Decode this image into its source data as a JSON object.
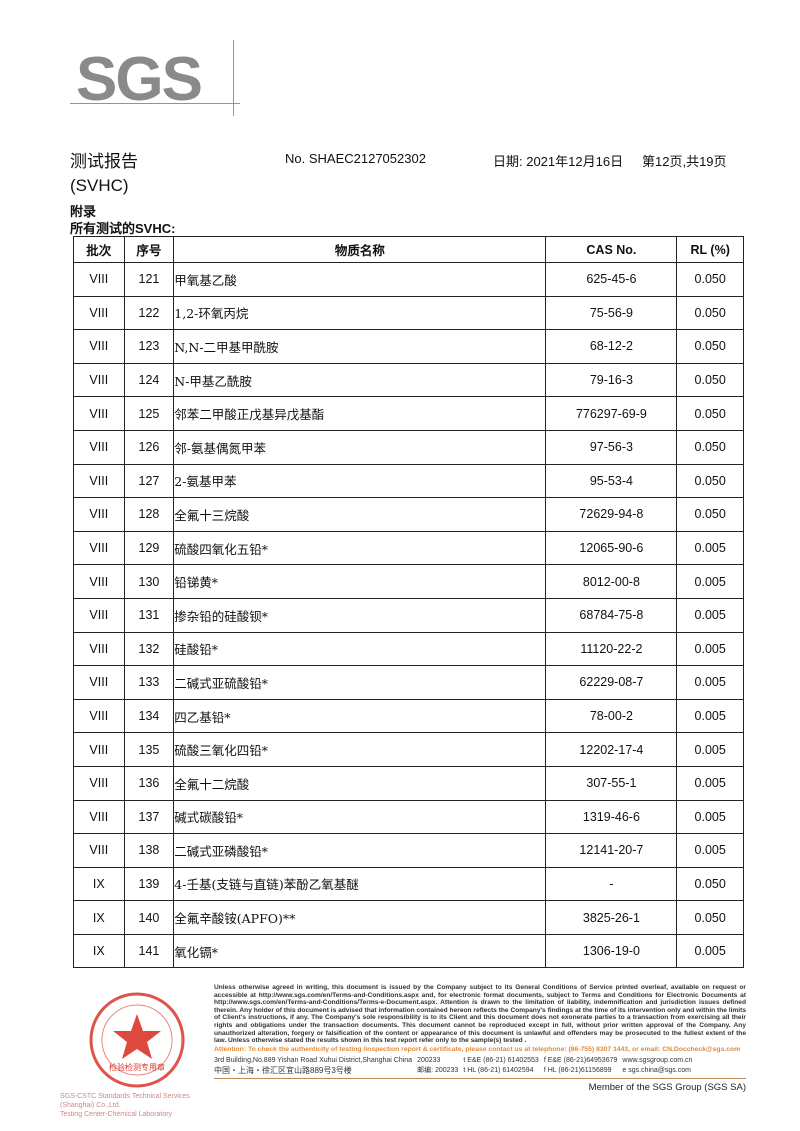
{
  "logo": "SGS",
  "header": {
    "title": "测试报告",
    "report_no": "No. SHAEC2127052302",
    "date": "日期: 2021年12月16日",
    "page": "第12页,共19页",
    "subtitle": "(SVHC)",
    "section": "附录",
    "list_title": "所有测试的SVHC:"
  },
  "table": {
    "columns": [
      "批次",
      "序号",
      "物质名称",
      "CAS No.",
      "RL (%)"
    ],
    "rows": [
      [
        "VIII",
        "121",
        "甲氧基乙酸",
        "625-45-6",
        "0.050"
      ],
      [
        "VIII",
        "122",
        "1,2-环氧丙烷",
        "75-56-9",
        "0.050"
      ],
      [
        "VIII",
        "123",
        "N,N-二甲基甲酰胺",
        "68-12-2",
        "0.050"
      ],
      [
        "VIII",
        "124",
        "N-甲基乙酰胺",
        "79-16-3",
        "0.050"
      ],
      [
        "VIII",
        "125",
        "邻苯二甲酸正戊基异戊基酯",
        "776297-69-9",
        "0.050"
      ],
      [
        "VIII",
        "126",
        "邻-氨基偶氮甲苯",
        "97-56-3",
        "0.050"
      ],
      [
        "VIII",
        "127",
        "2-氨基甲苯",
        "95-53-4",
        "0.050"
      ],
      [
        "VIII",
        "128",
        "全氟十三烷酸",
        "72629-94-8",
        "0.050"
      ],
      [
        "VIII",
        "129",
        "硫酸四氧化五铅*",
        "12065-90-6",
        "0.005"
      ],
      [
        "VIII",
        "130",
        "铅锑黄*",
        "8012-00-8",
        "0.005"
      ],
      [
        "VIII",
        "131",
        "掺杂铅的硅酸钡*",
        "68784-75-8",
        "0.005"
      ],
      [
        "VIII",
        "132",
        "硅酸铅*",
        "11120-22-2",
        "0.005"
      ],
      [
        "VIII",
        "133",
        "二碱式亚硫酸铅*",
        "62229-08-7",
        "0.005"
      ],
      [
        "VIII",
        "134",
        "四乙基铅*",
        "78-00-2",
        "0.005"
      ],
      [
        "VIII",
        "135",
        "硫酸三氧化四铅*",
        "12202-17-4",
        "0.005"
      ],
      [
        "VIII",
        "136",
        "全氟十二烷酸",
        "307-55-1",
        "0.005"
      ],
      [
        "VIII",
        "137",
        "碱式碳酸铅*",
        "1319-46-6",
        "0.005"
      ],
      [
        "VIII",
        "138",
        "二碱式亚磷酸铅*",
        "12141-20-7",
        "0.005"
      ],
      [
        "IX",
        "139",
        "4-壬基(支链与直链)苯酚乙氧基醚",
        "-",
        "0.050"
      ],
      [
        "IX",
        "140",
        "全氟辛酸铵(APFO)**",
        "3825-26-1",
        "0.050"
      ],
      [
        "IX",
        "141",
        "氧化镉*",
        "1306-19-0",
        "0.005"
      ]
    ]
  },
  "footer": {
    "disclaimer": "Unless otherwise agreed in writing, this document is issued by the Company subject to its General Conditions of Service printed overleaf, available on request or accessible at http://www.sgs.com/en/Terms-and-Conditions.aspx and, for electronic format documents, subject to Terms and Conditions for Electronic Documents at http://www.sgs.com/en/Terms-and-Conditions/Terms-e-Document.aspx. Attention is drawn to the limitation of liability, indemnification and jurisdiction issues defined therein. Any holder of this document is advised that information contained hereon reflects the Company's findings at the time of its intervention only and within the limits of Client's instructions, if any. The Company's sole responsibility is to its Client and this document does not exonerate parties to a transaction from exercising all their rights and obligations under the transaction documents. This document cannot be reproduced except in full, without prior written approval of the Company. Any unauthorized alteration, forgery or falsification of the content or appearance of this document is unlawful and offenders may be prosecuted to the fullest extent of the law. Unless otherwise stated the results shown in this test report refer only to the sample(s) tested .",
    "attention": "Attention: To check the authenticity of testing /inspection report & certificate, please contact us at telephone: (86-755) 8307 1443, or email: CN.Doccheck@sgs.com",
    "address_en": "3rd Building,No.889 Yishan Road Xuhui District,Shanghai China",
    "zip_en": "200233",
    "tel1": "t E&E (86-21) 61402553",
    "fax1": "f E&E (86-21)64953679",
    "web": "www.sgsgroup.com.cn",
    "address_cn": "中国・上海・徐汇区宜山路889号3号楼",
    "zip_cn": "邮编: 200233",
    "tel2": "t HL (86-21) 61402594",
    "fax2": "f HL (86-21)61156899",
    "email": "e sgs.china@sgs.com",
    "member": "Member of the SGS Group (SGS SA)",
    "seal_company": "SGS-CSTC Standards Technical Services (Shanghai) Co.,Ltd.",
    "seal_center": "Testing Center-Chemical Laboratory",
    "seal_label": "检验检测专用章"
  },
  "colors": {
    "accent_line": "#c08a50",
    "attention": "#e08a3a",
    "seal": "#d9352a",
    "logo": "#8a8a8a"
  }
}
